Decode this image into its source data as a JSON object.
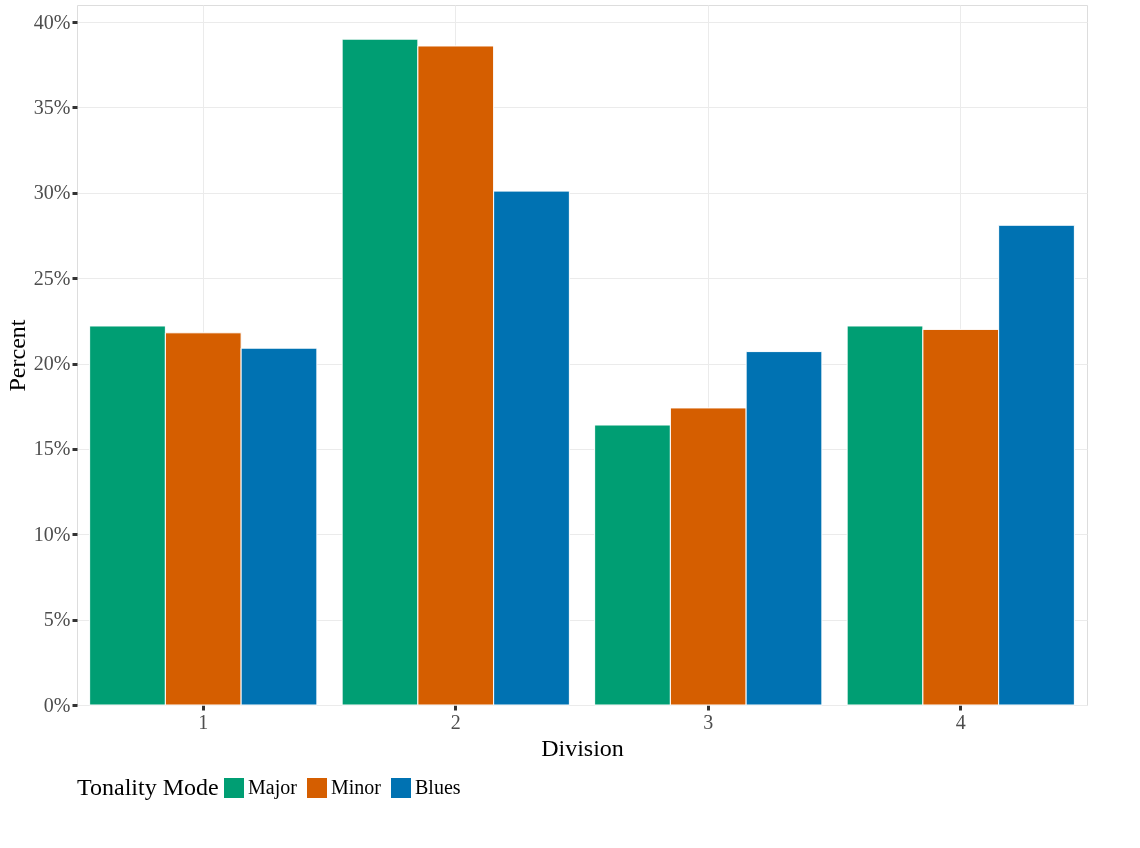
{
  "chart_data": {
    "type": "bar",
    "xlabel": "Division",
    "ylabel": "Percent",
    "legend_title": "Tonality Mode",
    "categories": [
      "1",
      "2",
      "3",
      "4"
    ],
    "series": [
      {
        "name": "Major",
        "color": "#009e73",
        "values": [
          22.2,
          39.0,
          16.4,
          22.2
        ]
      },
      {
        "name": "Minor",
        "color": "#d55e00",
        "values": [
          21.8,
          38.6,
          17.4,
          22.0
        ]
      },
      {
        "name": "Blues",
        "color": "#0072b2",
        "values": [
          20.9,
          30.1,
          20.7,
          28.1
        ]
      }
    ],
    "ylim": [
      0,
      41
    ],
    "yticks": [
      {
        "value": 0,
        "label": "0%"
      },
      {
        "value": 5,
        "label": "5%"
      },
      {
        "value": 10,
        "label": "10%"
      },
      {
        "value": 15,
        "label": "15%"
      },
      {
        "value": 20,
        "label": "20%"
      },
      {
        "value": 25,
        "label": "25%"
      },
      {
        "value": 30,
        "label": "30%"
      },
      {
        "value": 35,
        "label": "35%"
      },
      {
        "value": 40,
        "label": "40%"
      }
    ],
    "grid": true,
    "legend": "bottom"
  }
}
